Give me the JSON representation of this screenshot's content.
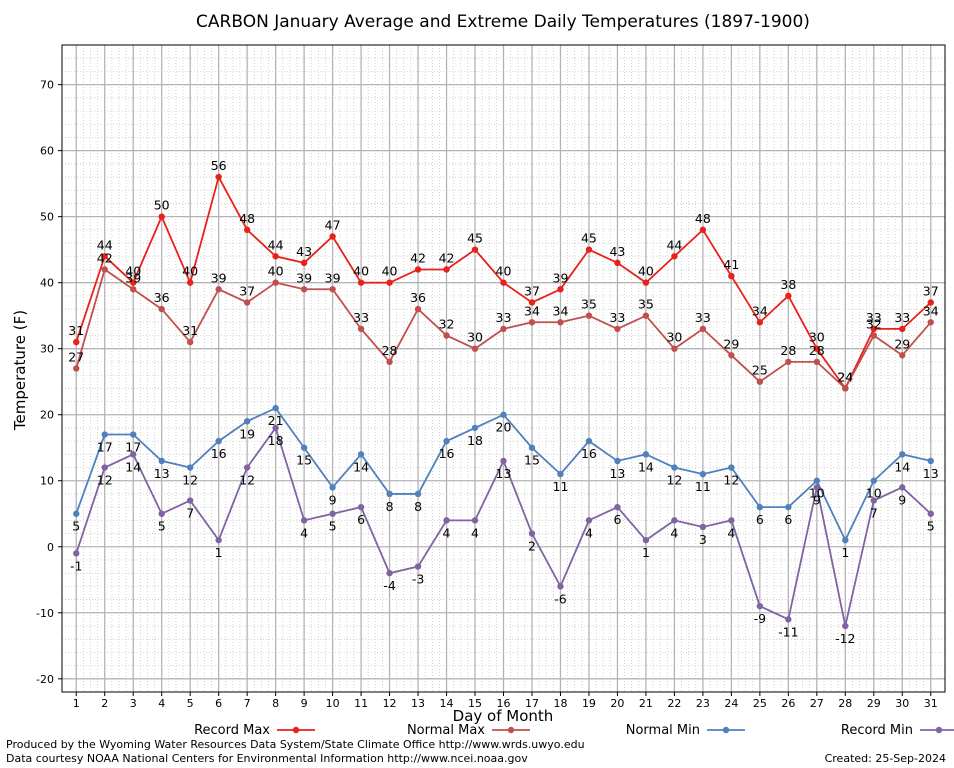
{
  "chart_data": {
    "type": "line",
    "title": "CARBON January Average and Extreme Daily Temperatures (1897-1900)",
    "xlabel": "Day of Month",
    "ylabel": "Temperature (F)",
    "xlim": [
      0.5,
      31.5
    ],
    "ylim": [
      -22,
      76
    ],
    "yticks": [
      -20,
      -10,
      0,
      10,
      20,
      30,
      40,
      50,
      60,
      70
    ],
    "x": [
      1,
      2,
      3,
      4,
      5,
      6,
      7,
      8,
      9,
      10,
      11,
      12,
      13,
      14,
      15,
      16,
      17,
      18,
      19,
      20,
      21,
      22,
      23,
      24,
      25,
      26,
      27,
      28,
      29,
      30,
      31
    ],
    "grid": true,
    "legend_position": "bottom",
    "series": [
      {
        "name": "Record Max",
        "color": "#e8211b",
        "values": [
          31,
          44,
          40,
          50,
          40,
          56,
          48,
          44,
          43,
          47,
          40,
          40,
          42,
          42,
          45,
          40,
          37,
          39,
          45,
          43,
          40,
          44,
          48,
          41,
          34,
          38,
          30,
          24,
          33,
          33,
          37
        ],
        "label_pos": "above"
      },
      {
        "name": "Normal Max",
        "color": "#c0504d",
        "values": [
          27,
          42,
          39,
          36,
          31,
          39,
          37,
          40,
          39,
          39,
          33,
          28,
          36,
          32,
          30,
          33,
          34,
          34,
          35,
          33,
          35,
          30,
          33,
          29,
          25,
          28,
          28,
          24,
          32,
          29,
          34
        ],
        "label_pos": "above"
      },
      {
        "name": "Normal Min",
        "color": "#4f81bd",
        "values": [
          5,
          17,
          17,
          13,
          12,
          16,
          19,
          21,
          15,
          9,
          14,
          8,
          8,
          16,
          18,
          20,
          15,
          11,
          16,
          13,
          14,
          12,
          11,
          12,
          6,
          6,
          10,
          1,
          10,
          14,
          13
        ],
        "label_pos": "below"
      },
      {
        "name": "Record Min",
        "color": "#8064a2",
        "values": [
          -1,
          12,
          14,
          5,
          7,
          1,
          12,
          18,
          4,
          5,
          6,
          -4,
          -3,
          4,
          4,
          13,
          2,
          -6,
          4,
          6,
          1,
          4,
          3,
          4,
          -9,
          -11,
          9,
          -12,
          7,
          9,
          5
        ],
        "label_pos": "below"
      }
    ]
  },
  "footer": {
    "line1": "Produced by the Wyoming Water Resources Data System/State Climate Office http://www.wrds.uwyo.edu",
    "line2": "Data courtesy NOAA National Centers for Environmental Information http://www.ncei.noaa.gov",
    "created": "Created:  25-Sep-2024"
  }
}
